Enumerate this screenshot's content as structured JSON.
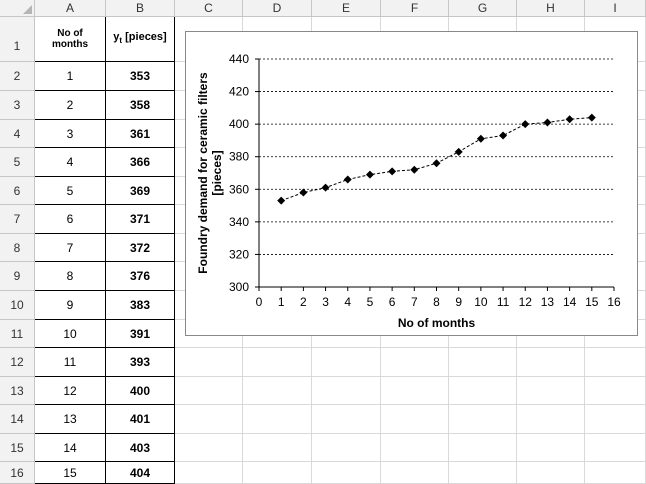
{
  "columns": [
    "A",
    "B",
    "C",
    "D",
    "E",
    "F",
    "G",
    "H",
    "I"
  ],
  "rows": [
    "1",
    "2",
    "3",
    "4",
    "5",
    "6",
    "7",
    "8",
    "9",
    "10",
    "11",
    "12",
    "13",
    "14",
    "15",
    "16"
  ],
  "table": {
    "header_a": "No of months",
    "header_b_main": "y",
    "header_b_sub": "t",
    "header_b_unit": " [pieces]",
    "months": [
      "1",
      "2",
      "3",
      "4",
      "5",
      "6",
      "7",
      "8",
      "9",
      "10",
      "11",
      "12",
      "13",
      "14",
      "15"
    ],
    "pieces": [
      "353",
      "358",
      "361",
      "366",
      "369",
      "371",
      "372",
      "376",
      "383",
      "391",
      "393",
      "400",
      "401",
      "403",
      "404"
    ]
  },
  "chart_data": {
    "type": "line",
    "xlabel": "No of months",
    "ylabel_line1": "Foundry demand for ceramic filters",
    "ylabel_line2": "[pieces]",
    "xlim": [
      0,
      16
    ],
    "ylim": [
      300,
      440
    ],
    "x_ticks": [
      "0",
      "1",
      "2",
      "3",
      "4",
      "5",
      "6",
      "7",
      "8",
      "9",
      "10",
      "11",
      "12",
      "13",
      "14",
      "15",
      "16"
    ],
    "y_ticks": [
      "300",
      "320",
      "340",
      "360",
      "380",
      "400",
      "420",
      "440"
    ],
    "grid": "horizontal dotted",
    "marker": "diamond",
    "line_style": "dashed",
    "series": [
      {
        "x": [
          1,
          2,
          3,
          4,
          5,
          6,
          7,
          8,
          9,
          10,
          11,
          12,
          13,
          14,
          15
        ],
        "values": [
          353,
          358,
          361,
          366,
          369,
          371,
          372,
          376,
          383,
          391,
          393,
          400,
          401,
          403,
          404
        ]
      }
    ]
  }
}
